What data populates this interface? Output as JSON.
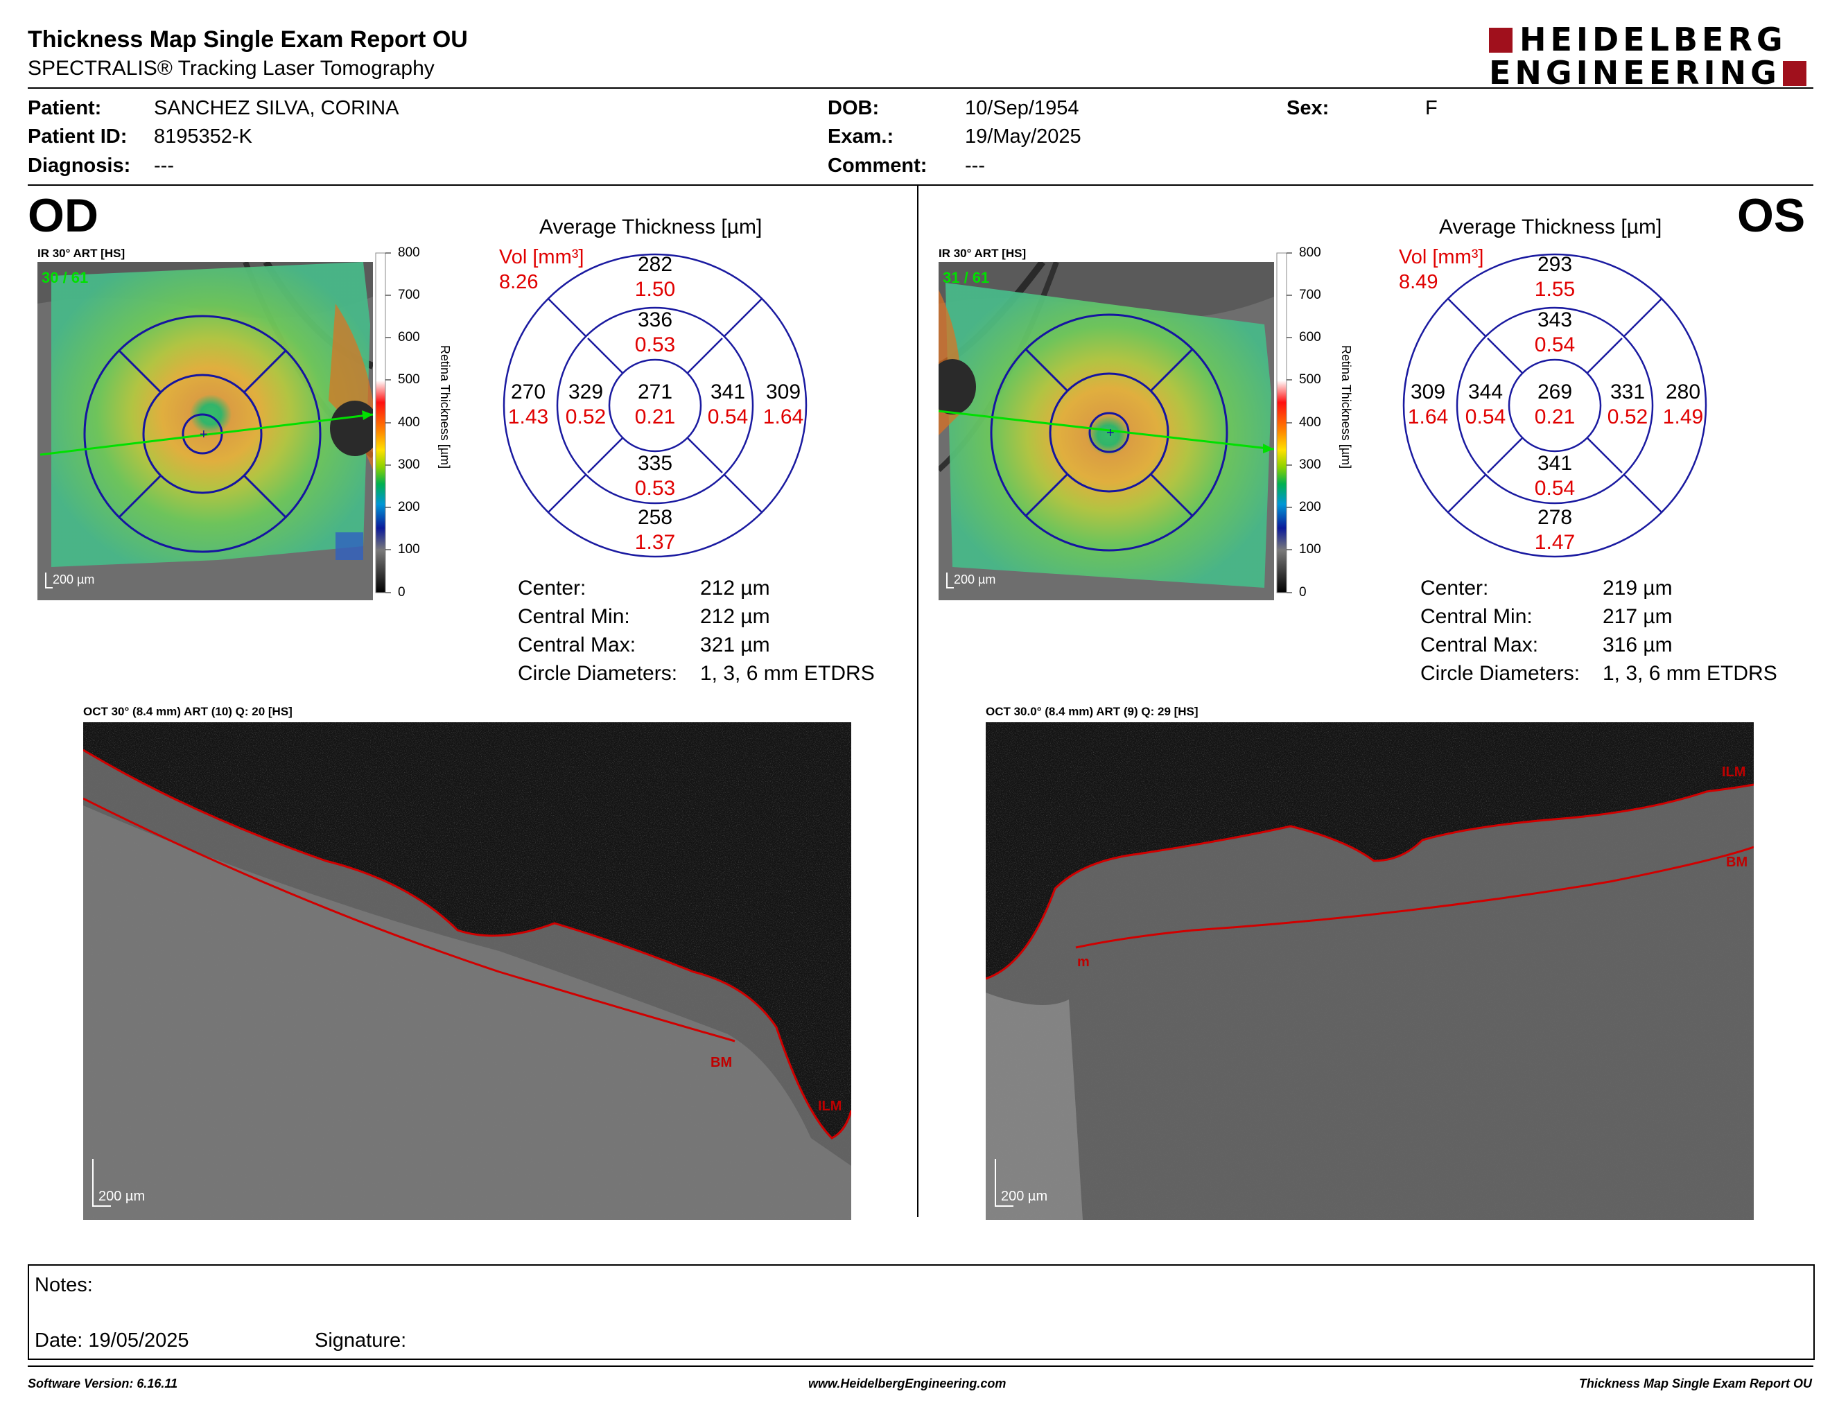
{
  "header": {
    "title": "Thickness Map Single Exam Report OU",
    "subtitle": "SPECTRALIS® Tracking Laser Tomography",
    "logo_line1": "HEIDELBERG",
    "logo_line2": "ENGINEERING"
  },
  "patient": {
    "patient_label": "Patient:",
    "patient_value": "SANCHEZ SILVA, CORINA",
    "id_label": "Patient ID:",
    "id_value": "8195352-K",
    "diagnosis_label": "Diagnosis:",
    "diagnosis_value": "---",
    "dob_label": "DOB:",
    "dob_value": "10/Sep/1954",
    "exam_label": "Exam.:",
    "exam_value": "19/May/2025",
    "comment_label": "Comment:",
    "comment_value": "---",
    "sex_label": "Sex:",
    "sex_value": "F"
  },
  "colorbar": {
    "ticks": [
      "800",
      "700",
      "600",
      "500",
      "400",
      "300",
      "200",
      "100",
      "0"
    ],
    "title": "Retina  Thickness [µm]"
  },
  "od": {
    "eye": "OD",
    "fundus_title": "IR 30° ART [HS]",
    "frames": "30 / 61",
    "scale": "200 µm",
    "chart_title": "Average Thickness [µm]",
    "vol_label": "Vol [mm³]",
    "vol_total": "8.26",
    "sectors": {
      "outer_top": {
        "thickness": "282",
        "volume": "1.50"
      },
      "inner_top": {
        "thickness": "336",
        "volume": "0.53"
      },
      "outer_left": {
        "thickness": "270",
        "volume": "1.43"
      },
      "inner_left": {
        "thickness": "329",
        "volume": "0.52"
      },
      "center": {
        "thickness": "271",
        "volume": "0.21"
      },
      "inner_right": {
        "thickness": "341",
        "volume": "0.54"
      },
      "outer_right": {
        "thickness": "309",
        "volume": "1.64"
      },
      "inner_bottom": {
        "thickness": "335",
        "volume": "0.53"
      },
      "outer_bottom": {
        "thickness": "258",
        "volume": "1.37"
      }
    },
    "stats": {
      "center_label": "Center:",
      "center_value": "212 µm",
      "min_label": "Central Min:",
      "min_value": "212 µm",
      "max_label": "Central Max:",
      "max_value": "321 µm",
      "diam_label": "Circle Diameters:",
      "diam_value": "1, 3, 6 mm ETDRS"
    },
    "oct_title": "OCT 30° (8.4 mm) ART (10) Q: 20 [HS]",
    "oct_scale": "200 µm",
    "oct_labels": [
      "BM",
      "ILM"
    ]
  },
  "os": {
    "eye": "OS",
    "fundus_title": "IR 30° ART [HS]",
    "frames": "31 / 61",
    "scale": "200 µm",
    "chart_title": "Average Thickness [µm]",
    "vol_label": "Vol [mm³]",
    "vol_total": "8.49",
    "sectors": {
      "outer_top": {
        "thickness": "293",
        "volume": "1.55"
      },
      "inner_top": {
        "thickness": "343",
        "volume": "0.54"
      },
      "outer_left": {
        "thickness": "309",
        "volume": "1.64"
      },
      "inner_left": {
        "thickness": "344",
        "volume": "0.54"
      },
      "center": {
        "thickness": "269",
        "volume": "0.21"
      },
      "inner_right": {
        "thickness": "331",
        "volume": "0.52"
      },
      "outer_right": {
        "thickness": "280",
        "volume": "1.49"
      },
      "inner_bottom": {
        "thickness": "341",
        "volume": "0.54"
      },
      "outer_bottom": {
        "thickness": "278",
        "volume": "1.47"
      }
    },
    "stats": {
      "center_label": "Center:",
      "center_value": "219 µm",
      "min_label": "Central Min:",
      "min_value": "217 µm",
      "max_label": "Central Max:",
      "max_value": "316 µm",
      "diam_label": "Circle Diameters:",
      "diam_value": "1, 3, 6 mm ETDRS"
    },
    "oct_title": "OCT 30.0° (8.4 mm) ART (9) Q: 29 [HS]",
    "oct_scale": "200 µm",
    "oct_labels": [
      "ILM",
      "BM",
      "m"
    ]
  },
  "notes": {
    "notes_label": "Notes:",
    "date_label": "Date: 19/05/2025",
    "signature_label": "Signature:"
  },
  "footer": {
    "software": "Software Version: 6.16.11",
    "website": "www.HeidelbergEngineering.com",
    "report_name": "Thickness Map Single Exam Report OU"
  },
  "colors": {
    "accent_red": "#e00000",
    "etdrs_blue": "#1a1aa0",
    "logo_red": "#a0101c"
  }
}
